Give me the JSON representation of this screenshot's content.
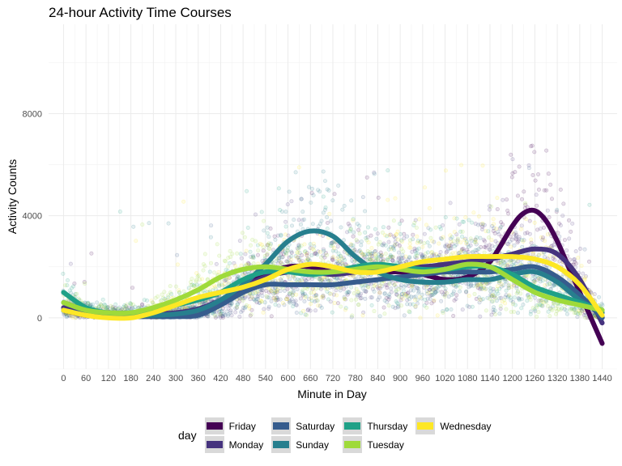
{
  "chart_data": {
    "type": "line",
    "title": "24-hour Activity Time Courses",
    "xlabel": "Minute in Day",
    "ylabel": "Activity Counts",
    "xlim": [
      -40,
      1480
    ],
    "ylim": [
      -2000,
      11500
    ],
    "x_ticks": [
      "0",
      "60",
      "120",
      "180",
      "240",
      "300",
      "360",
      "420",
      "480",
      "540",
      "600",
      "660",
      "720",
      "780",
      "840",
      "900",
      "960",
      "1020",
      "1080",
      "1140",
      "1200",
      "1260",
      "1320",
      "1380",
      "1440"
    ],
    "y_ticks": [
      "0",
      "4000",
      "8000"
    ],
    "grid": true,
    "legend_title": "day",
    "legend_position": "bottom",
    "series": [
      {
        "name": "Friday",
        "color": "#440154",
        "x": [
          0,
          60,
          120,
          180,
          240,
          300,
          360,
          420,
          480,
          540,
          600,
          660,
          720,
          780,
          840,
          900,
          960,
          1020,
          1080,
          1140,
          1200,
          1230,
          1260,
          1290,
          1320,
          1350,
          1380,
          1410,
          1440
        ],
        "y": [
          300,
          100,
          50,
          100,
          100,
          150,
          300,
          600,
          1200,
          1700,
          2000,
          2000,
          1800,
          1900,
          1800,
          1800,
          1700,
          1500,
          1600,
          2200,
          3600,
          4100,
          4200,
          3800,
          3000,
          2000,
          1000,
          0,
          -1000
        ]
      },
      {
        "name": "Monday",
        "color": "#46337e",
        "x": [
          0,
          60,
          120,
          180,
          240,
          300,
          360,
          420,
          480,
          540,
          600,
          660,
          720,
          780,
          840,
          900,
          960,
          1020,
          1080,
          1140,
          1200,
          1260,
          1320,
          1380,
          1440
        ],
        "y": [
          400,
          200,
          100,
          150,
          150,
          200,
          350,
          700,
          1200,
          1600,
          1800,
          1800,
          1700,
          1800,
          1900,
          2000,
          2000,
          2100,
          2200,
          2300,
          2500,
          2700,
          2500,
          1500,
          -200
        ]
      },
      {
        "name": "Saturday",
        "color": "#365c8d",
        "x": [
          0,
          60,
          120,
          180,
          240,
          300,
          360,
          420,
          480,
          540,
          600,
          660,
          720,
          780,
          840,
          900,
          960,
          1020,
          1080,
          1140,
          1200,
          1260,
          1320,
          1380,
          1440
        ],
        "y": [
          300,
          150,
          100,
          50,
          50,
          50,
          100,
          500,
          1000,
          1300,
          1300,
          1300,
          1300,
          1400,
          1500,
          1600,
          1700,
          1800,
          1800,
          1800,
          1900,
          2000,
          1600,
          900,
          0
        ]
      },
      {
        "name": "Sunday",
        "color": "#277f8e",
        "x": [
          0,
          60,
          120,
          180,
          240,
          300,
          360,
          420,
          480,
          540,
          600,
          660,
          720,
          780,
          840,
          900,
          960,
          1020,
          1080,
          1140,
          1200,
          1260,
          1320,
          1380,
          1440
        ],
        "y": [
          600,
          300,
          100,
          100,
          100,
          150,
          300,
          700,
          1300,
          2100,
          3000,
          3400,
          3200,
          2400,
          1800,
          1500,
          1400,
          1400,
          1500,
          1500,
          1700,
          1800,
          1400,
          700,
          200
        ]
      },
      {
        "name": "Thursday",
        "color": "#1fa187",
        "x": [
          0,
          60,
          120,
          180,
          240,
          300,
          360,
          420,
          480,
          540,
          600,
          660,
          720,
          780,
          840,
          900,
          960,
          1020,
          1080,
          1140,
          1200,
          1260,
          1320,
          1380,
          1440
        ],
        "y": [
          1000,
          400,
          200,
          200,
          300,
          500,
          700,
          1000,
          1500,
          1800,
          1800,
          1700,
          1800,
          2000,
          2100,
          2000,
          1900,
          1900,
          2000,
          2000,
          1700,
          1200,
          900,
          600,
          300
        ]
      },
      {
        "name": "Tuesday",
        "color": "#9fda3a",
        "x": [
          0,
          60,
          120,
          180,
          240,
          300,
          360,
          420,
          480,
          540,
          600,
          660,
          720,
          780,
          840,
          900,
          960,
          1020,
          1080,
          1140,
          1200,
          1260,
          1320,
          1380,
          1440
        ],
        "y": [
          600,
          300,
          200,
          200,
          400,
          700,
          1100,
          1600,
          1900,
          2000,
          1900,
          1800,
          1800,
          1900,
          2000,
          1900,
          1800,
          1900,
          2100,
          2000,
          1500,
          1000,
          700,
          500,
          300
        ]
      },
      {
        "name": "Wednesday",
        "color": "#fde725",
        "x": [
          0,
          60,
          120,
          180,
          240,
          300,
          360,
          420,
          480,
          540,
          600,
          660,
          720,
          780,
          840,
          900,
          960,
          1020,
          1080,
          1140,
          1200,
          1260,
          1320,
          1380,
          1440
        ],
        "y": [
          300,
          100,
          0,
          0,
          200,
          500,
          800,
          1000,
          1200,
          1500,
          1900,
          2100,
          2000,
          1800,
          1800,
          2000,
          2200,
          2300,
          2400,
          2400,
          2400,
          2300,
          2000,
          1300,
          100
        ]
      }
    ]
  }
}
